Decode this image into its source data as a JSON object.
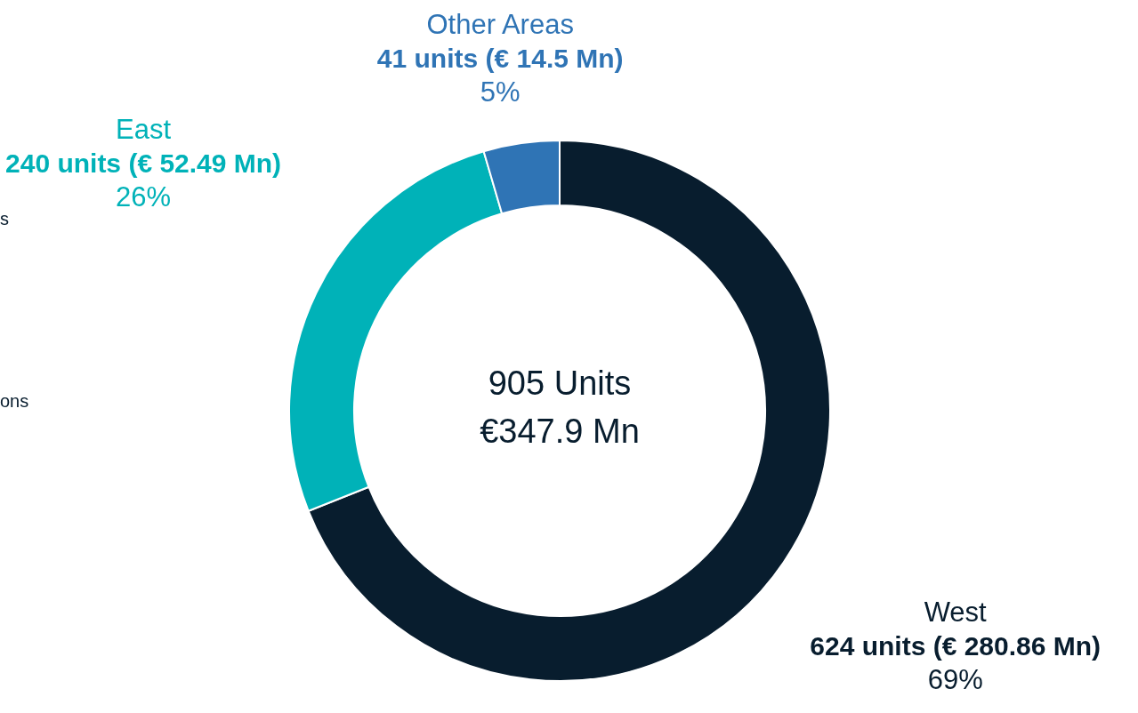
{
  "chart_data": {
    "type": "donut",
    "categories": [
      "West",
      "East",
      "Other Areas"
    ],
    "values": [
      624,
      240,
      41
    ],
    "value_labels": [
      "624 units (€ 280.86 Mn)\n69%",
      "240 units (€ 52.49 Mn)\n26%",
      "41 units (€ 14.5 Mn)\n5%"
    ],
    "colors": [
      "#081d2e",
      "#00b2b8",
      "#2f74b5"
    ],
    "annotations": [
      "905 Units",
      "€347.9 Mn",
      "s",
      "ons"
    ],
    "legend": false
  }
}
